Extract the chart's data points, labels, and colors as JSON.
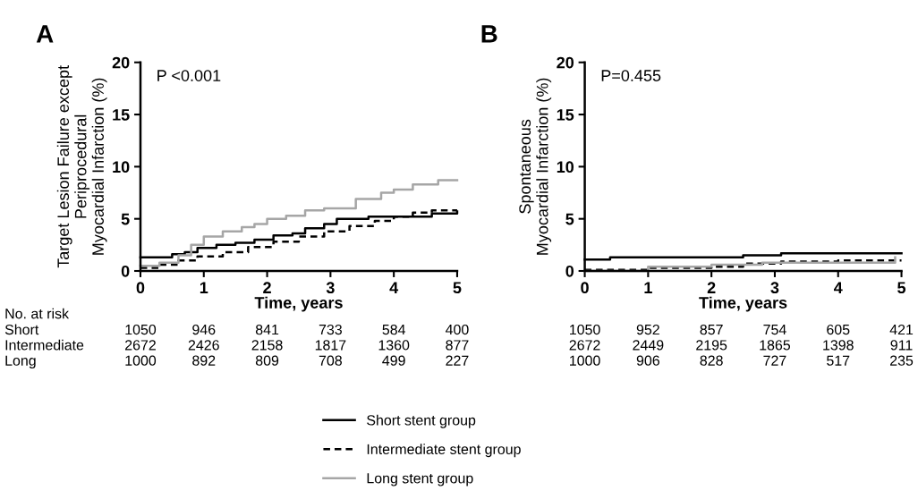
{
  "chart_data": [
    {
      "type": "step",
      "title": "A",
      "xlabel": "Time, years",
      "ylabel": "Target Lesion Failure except\nPeriprocedural\nMyocardial Infarction (%)",
      "xlim": [
        0,
        5
      ],
      "xticks": [
        0,
        1,
        2,
        3,
        4,
        5
      ],
      "ylim": [
        0,
        20
      ],
      "yticks": [
        0,
        5,
        10,
        15,
        20
      ],
      "grid": false,
      "legend": "bottom",
      "series": [
        {
          "name": "Short stent group",
          "color": "#000000",
          "line_style": "solid",
          "x": [
            0,
            0.3,
            0.5,
            0.7,
            0.9,
            1.2,
            1.5,
            1.8,
            2.1,
            2.4,
            2.6,
            2.9,
            3.1,
            3.6,
            4.5,
            4.6,
            5
          ],
          "values": [
            1.3,
            1.3,
            1.6,
            1.8,
            2.2,
            2.5,
            2.7,
            3.0,
            3.4,
            3.6,
            4.1,
            4.5,
            5.0,
            5.2,
            5.2,
            5.5,
            5.7
          ]
        },
        {
          "name": "Intermediate stent group",
          "color": "#000000",
          "line_style": "dashed",
          "x": [
            0,
            0.3,
            0.6,
            0.9,
            1.3,
            1.7,
            2.1,
            2.5,
            2.9,
            3.3,
            3.7,
            4.0,
            4.3,
            4.6,
            5
          ],
          "values": [
            0.3,
            0.6,
            1.0,
            1.4,
            1.8,
            2.3,
            2.8,
            3.3,
            3.8,
            4.3,
            4.8,
            5.2,
            5.6,
            5.8,
            5.8
          ]
        },
        {
          "name": "Long stent group",
          "color": "#a6a6a6",
          "line_style": "solid",
          "x": [
            0,
            0.3,
            0.6,
            0.8,
            1.0,
            1.3,
            1.6,
            1.8,
            2.0,
            2.3,
            2.6,
            2.9,
            3.1,
            3.4,
            3.8,
            4.0,
            4.3,
            4.7,
            5
          ],
          "values": [
            0.5,
            0.8,
            1.5,
            2.5,
            3.3,
            3.8,
            4.2,
            4.5,
            5.0,
            5.3,
            5.8,
            6.0,
            6.0,
            6.9,
            7.5,
            7.8,
            8.3,
            8.7,
            8.7
          ]
        }
      ],
      "annotations": [
        "P <0.001",
        "No. at risk",
        "Short",
        "Intermediate",
        "Long",
        "1050",
        "946",
        "841",
        "733",
        "584",
        "400",
        "2672",
        "2426",
        "2158",
        "1817",
        "1360",
        "877",
        "1000",
        "892",
        "809",
        "708",
        "499",
        "227"
      ]
    },
    {
      "type": "step",
      "title": "B",
      "xlabel": "Time, years",
      "ylabel": "Spontaneous\nMyocardial Infarction (%)",
      "xlim": [
        0,
        5
      ],
      "xticks": [
        0,
        1,
        2,
        3,
        4,
        5
      ],
      "ylim": [
        0,
        20
      ],
      "yticks": [
        0,
        5,
        10,
        15,
        20
      ],
      "grid": false,
      "series": [
        {
          "color": "#000000",
          "line_style": "solid",
          "x": [
            0,
            0.4,
            2.5,
            3.1,
            5
          ],
          "values": [
            1.1,
            1.3,
            1.5,
            1.7,
            1.7
          ]
        },
        {
          "color": "#000000",
          "line_style": "dashed",
          "x": [
            0,
            1.0,
            2.0,
            2.5,
            3.1,
            4.0,
            5
          ],
          "values": [
            0.1,
            0.3,
            0.4,
            0.7,
            0.9,
            1.0,
            1.0
          ]
        },
        {
          "color": "#a6a6a6",
          "line_style": "solid",
          "x": [
            0,
            1.0,
            2.0,
            2.8,
            4.3,
            4.9
          ],
          "values": [
            0.0,
            0.4,
            0.6,
            0.8,
            0.8,
            1.3
          ]
        }
      ],
      "annotations": [
        "P=0.455",
        "1050",
        "952",
        "857",
        "754",
        "605",
        "421",
        "2672",
        "2449",
        "2195",
        "1865",
        "1398",
        "911",
        "1000",
        "906",
        "828",
        "727",
        "517",
        "235"
      ]
    }
  ]
}
